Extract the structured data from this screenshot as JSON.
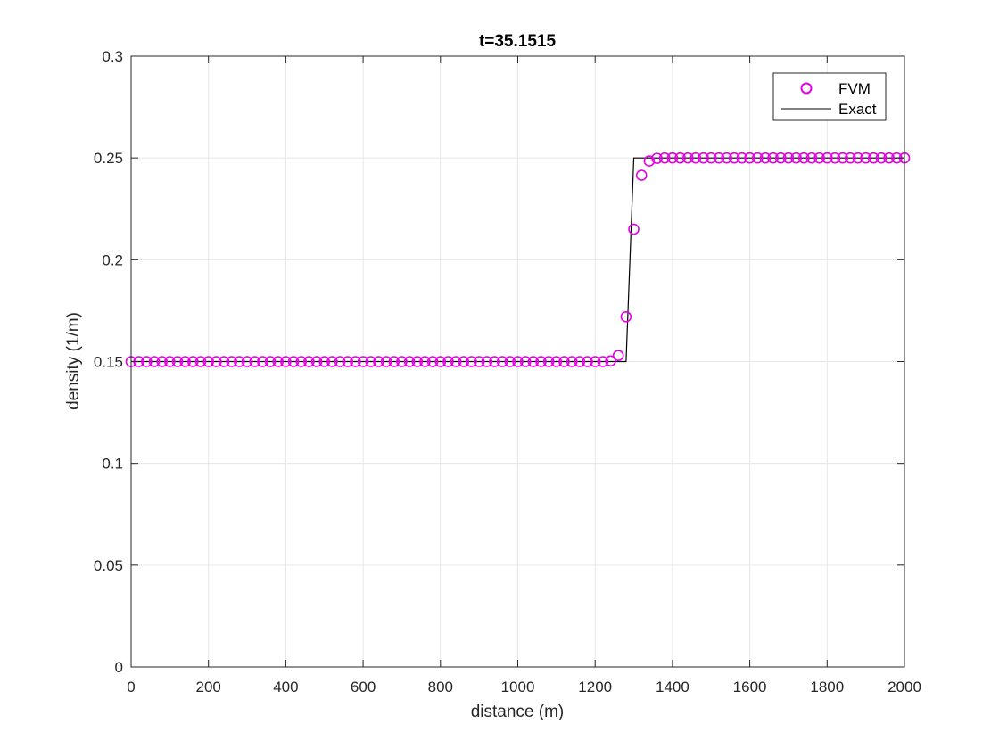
{
  "chart_data": {
    "type": "line",
    "title": "t=35.1515",
    "xlabel": "distance (m)",
    "ylabel": "density (1/m)",
    "xlim": [
      0,
      2000
    ],
    "ylim": [
      0,
      0.3
    ],
    "xticks": [
      0,
      200,
      400,
      600,
      800,
      1000,
      1200,
      1400,
      1600,
      1800,
      2000
    ],
    "xtick_labels": [
      "0",
      "200",
      "400",
      "600",
      "800",
      "1000",
      "1200",
      "1400",
      "1600",
      "1800",
      "2000"
    ],
    "yticks": [
      0,
      0.05,
      0.1,
      0.15,
      0.2,
      0.25,
      0.3
    ],
    "ytick_labels": [
      "0",
      "0.05",
      "0.1",
      "0.15",
      "0.2",
      "0.25",
      "0.3"
    ],
    "grid": true,
    "legend_position": "top-right",
    "series": [
      {
        "name": "FVM",
        "style": "markers",
        "marker": "circle",
        "color": "#e600e6",
        "x_start": 0,
        "x_step": 20,
        "values": [
          0.15,
          0.15,
          0.15,
          0.15,
          0.15,
          0.15,
          0.15,
          0.15,
          0.15,
          0.15,
          0.15,
          0.15,
          0.15,
          0.15,
          0.15,
          0.15,
          0.15,
          0.15,
          0.15,
          0.15,
          0.15,
          0.15,
          0.15,
          0.15,
          0.15,
          0.15,
          0.15,
          0.15,
          0.15,
          0.15,
          0.15,
          0.15,
          0.15,
          0.15,
          0.15,
          0.15,
          0.15,
          0.15,
          0.15,
          0.15,
          0.15,
          0.15,
          0.15,
          0.15,
          0.15,
          0.15,
          0.15,
          0.15,
          0.15,
          0.15,
          0.15,
          0.15,
          0.15,
          0.15,
          0.15,
          0.15,
          0.15,
          0.15,
          0.15,
          0.15,
          0.15,
          0.15,
          0.1503,
          0.153,
          0.172,
          0.215,
          0.2415,
          0.2485,
          0.2498,
          0.25,
          0.25,
          0.25,
          0.25,
          0.25,
          0.25,
          0.25,
          0.25,
          0.25,
          0.25,
          0.25,
          0.25,
          0.25,
          0.25,
          0.25,
          0.25,
          0.25,
          0.25,
          0.25,
          0.25,
          0.25,
          0.25,
          0.25,
          0.25,
          0.25,
          0.25,
          0.25,
          0.25,
          0.25,
          0.25,
          0.25,
          0.25
        ]
      },
      {
        "name": "Exact",
        "style": "line",
        "color": "#000000",
        "points": [
          [
            0,
            0.15
          ],
          [
            1280,
            0.15
          ],
          [
            1300,
            0.25
          ],
          [
            2000,
            0.25
          ]
        ]
      }
    ]
  }
}
